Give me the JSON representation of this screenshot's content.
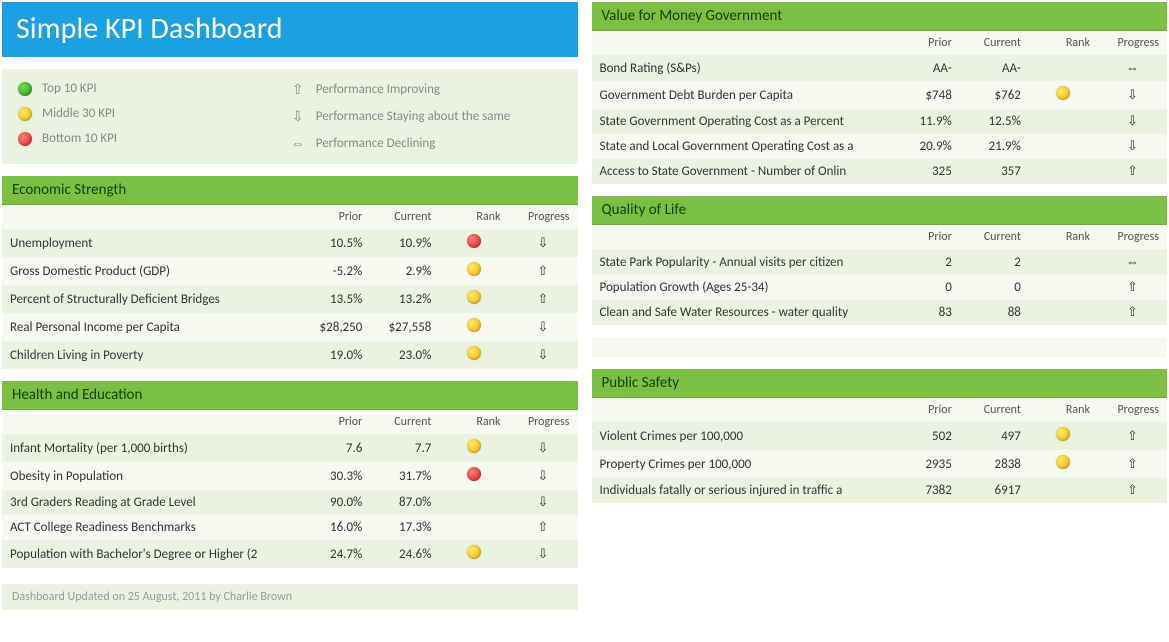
{
  "title": "Simple KPI Dashboard",
  "legend": {
    "ranks": [
      {
        "color": "green",
        "label": "Top 10 KPI"
      },
      {
        "color": "yellow",
        "label": "Middle 30 KPI"
      },
      {
        "color": "red",
        "label": "Bottom 10 KPI"
      }
    ],
    "progress": [
      {
        "glyph": "⇧",
        "label": "Performance Improving"
      },
      {
        "glyph": "⇩",
        "label": "Performance Staying about the same"
      },
      {
        "glyph": "⇔",
        "label": "Performance Declining"
      }
    ]
  },
  "columns": {
    "name": "",
    "prior": "Prior",
    "current": "Current",
    "rank": "Rank",
    "progress": "Progress"
  },
  "colors": {
    "title_bg": "#1ba1e2",
    "panel_header_bg": "#7bc043",
    "row_odd_bg": "#eaf3df",
    "row_even_bg": "#f5f9ef",
    "green_dot": "#2e9a12",
    "yellow_dot": "#f2b200",
    "red_dot": "#d62020",
    "text_muted": "#888888"
  },
  "panels": {
    "value_for_money": {
      "title": "Value for Money Government",
      "rows": [
        {
          "name": "Bond Rating (S&Ps)",
          "prior": "AA-",
          "current": "AA-",
          "rank": "",
          "progress": "⇔"
        },
        {
          "name": "Government Debt Burden per Capita",
          "prior": "$748",
          "current": "$762",
          "rank": "yellow",
          "progress": "⇩"
        },
        {
          "name": "State Government Operating Cost as a Percent",
          "prior": "11.9%",
          "current": "12.5%",
          "rank": "",
          "progress": "⇩"
        },
        {
          "name": "State and Local Government Operating Cost as a",
          "prior": "20.9%",
          "current": "21.9%",
          "rank": "",
          "progress": "⇩"
        },
        {
          "name": "Access to State Government - Number of Onlin",
          "prior": "325",
          "current": "357",
          "rank": "",
          "progress": "⇧"
        }
      ]
    },
    "economic_strength": {
      "title": "Economic Strength",
      "rows": [
        {
          "name": "Unemployment",
          "prior": "10.5%",
          "current": "10.9%",
          "rank": "red",
          "progress": "⇩"
        },
        {
          "name": "Gross Domestic Product (GDP)",
          "prior": "-5.2%",
          "current": "2.9%",
          "rank": "yellow",
          "progress": "⇧"
        },
        {
          "name": "Percent of Structurally Deficient Bridges",
          "prior": "13.5%",
          "current": "13.2%",
          "rank": "yellow",
          "progress": "⇧"
        },
        {
          "name": "Real Personal Income per Capita",
          "prior": "$28,250",
          "current": "$27,558",
          "rank": "yellow",
          "progress": "⇩"
        },
        {
          "name": "Children Living in Poverty",
          "prior": "19.0%",
          "current": "23.0%",
          "rank": "yellow",
          "progress": "⇩"
        }
      ]
    },
    "quality_of_life": {
      "title": "Quality of Life",
      "rows": [
        {
          "name": "State Park Popularity - Annual visits per citizen",
          "prior": "2",
          "current": "2",
          "rank": "",
          "progress": "⇔"
        },
        {
          "name": "Population Growth (Ages 25-34)",
          "prior": "0",
          "current": "0",
          "rank": "",
          "progress": "⇧"
        },
        {
          "name": "Clean and Safe Water Resources - water quality",
          "prior": "83",
          "current": "88",
          "rank": "",
          "progress": "⇧"
        }
      ]
    },
    "health_education": {
      "title": "Health and Education",
      "rows": [
        {
          "name": "Infant Mortality (per 1,000 births)",
          "prior": "7.6",
          "current": "7.7",
          "rank": "yellow",
          "progress": "⇩"
        },
        {
          "name": "Obesity in Population",
          "prior": "30.3%",
          "current": "31.7%",
          "rank": "red",
          "progress": "⇩"
        },
        {
          "name": "3rd Graders Reading at Grade Level",
          "prior": "90.0%",
          "current": "87.0%",
          "rank": "",
          "progress": "⇩"
        },
        {
          "name": "ACT College Readiness Benchmarks",
          "prior": "16.0%",
          "current": "17.3%",
          "rank": "",
          "progress": "⇧"
        },
        {
          "name": "Population with Bachelor's Degree or Higher (2",
          "prior": "24.7%",
          "current": "24.6%",
          "rank": "yellow",
          "progress": "⇩"
        }
      ]
    },
    "public_safety": {
      "title": "Public Safety",
      "rows": [
        {
          "name": "Violent Crimes per 100,000",
          "prior": "502",
          "current": "497",
          "rank": "yellow",
          "progress": "⇧"
        },
        {
          "name": "Property Crimes per 100,000",
          "prior": "2935",
          "current": "2838",
          "rank": "yellow",
          "progress": "⇧"
        },
        {
          "name": "Individuals fatally or serious injured in traffic a",
          "prior": "7382",
          "current": "6917",
          "rank": "",
          "progress": "⇧"
        }
      ]
    }
  },
  "footer": "Dashboard Updated on 25 August, 2011 by Charlie Brown"
}
